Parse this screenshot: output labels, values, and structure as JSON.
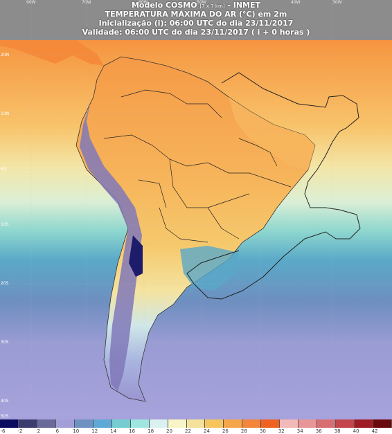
{
  "header": {
    "model_name": "Modelo COSMO",
    "model_res": "[7 x 7 km]",
    "model_org": "- INMET",
    "variable": "TEMPERATURA MÁXIMA DO AR (°C) em 2m",
    "init": "Inicialização (i): 06:00 UTC do dia 23/11/2017",
    "valid": "Validade: 06:00 UTC do dia 23/11/2017 ( i + 0 horas )"
  },
  "lon_labels": [
    "90W",
    "70W",
    "60W",
    "50W",
    "40W",
    "30W"
  ],
  "lat_labels": [
    "20N",
    "10N",
    "EQ",
    "10S",
    "20S",
    "30S",
    "40S",
    "50S"
  ],
  "legend": {
    "ticks": [
      "-6",
      "-2",
      "2",
      "6",
      "10",
      "12",
      "14",
      "16",
      "18",
      "20",
      "22",
      "24",
      "26",
      "28",
      "30",
      "32",
      "34",
      "36",
      "38",
      "40",
      "42"
    ],
    "colors": [
      "#0b0b60",
      "#3c3c6e",
      "#6a6a9a",
      "#a39ed8",
      "#6e93c2",
      "#5fa9d6",
      "#74cdd0",
      "#9fe6e0",
      "#d9f2f0",
      "#f8f5c8",
      "#f4e29a",
      "#f7c55e",
      "#f6a64a",
      "#f3863a",
      "#ef6222",
      "#f3b8b8",
      "#e89597",
      "#d86e72",
      "#c2464c",
      "#9e1c24",
      "#6a0a0e"
    ]
  }
}
